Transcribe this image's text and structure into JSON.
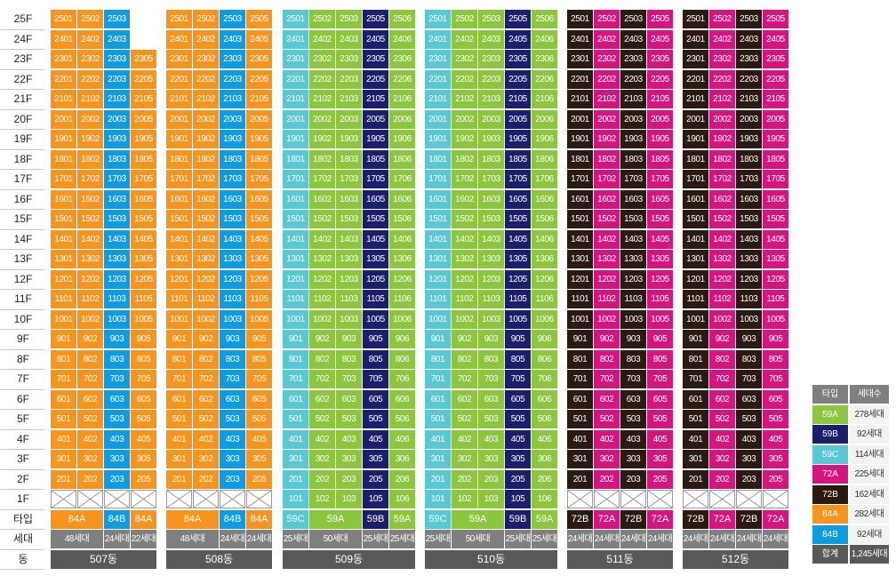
{
  "colors": {
    "59A": "#8cc63f",
    "59B": "#1b1f6b",
    "59C": "#5ac8d2",
    "72A": "#d4147f",
    "72B": "#2b1a12",
    "84A": "#f7941d",
    "84B": "#0f9be0"
  },
  "floors": [
    "25F",
    "24F",
    "23F",
    "22F",
    "21F",
    "20F",
    "19F",
    "18F",
    "17F",
    "16F",
    "15F",
    "14F",
    "13F",
    "12F",
    "11F",
    "10F",
    "9F",
    "8F",
    "7F",
    "6F",
    "5F",
    "4F",
    "3F",
    "2F",
    "1F"
  ],
  "row_labels": {
    "type": "타입",
    "households": "세대",
    "dong": "동"
  },
  "buildings": [
    {
      "name": "507동",
      "lines": [
        {
          "line": "01",
          "type": "84A",
          "top": 25,
          "first1F": false
        },
        {
          "line": "02",
          "type": "84A",
          "top": 25,
          "first1F": false
        },
        {
          "line": "03",
          "type": "84B",
          "top": 25,
          "first1F": false
        },
        {
          "line": "05",
          "type": "84A",
          "top": 23,
          "first1F": false
        }
      ],
      "type_groups": [
        {
          "label": "84A",
          "span": 2,
          "type": "84A"
        },
        {
          "label": "84B",
          "span": 1,
          "type": "84B"
        },
        {
          "label": "84A",
          "span": 1,
          "type": "84A"
        }
      ],
      "count_groups": [
        {
          "label": "48세대",
          "span": 2
        },
        {
          "label": "24세대",
          "span": 1
        },
        {
          "label": "22세대",
          "span": 1
        }
      ]
    },
    {
      "name": "508동",
      "lines": [
        {
          "line": "01",
          "type": "84A",
          "top": 25,
          "first1F": false
        },
        {
          "line": "02",
          "type": "84A",
          "top": 25,
          "first1F": false
        },
        {
          "line": "03",
          "type": "84B",
          "top": 25,
          "first1F": false
        },
        {
          "line": "05",
          "type": "84A",
          "top": 25,
          "first1F": false
        }
      ],
      "type_groups": [
        {
          "label": "84A",
          "span": 2,
          "type": "84A"
        },
        {
          "label": "84B",
          "span": 1,
          "type": "84B"
        },
        {
          "label": "84A",
          "span": 1,
          "type": "84A"
        }
      ],
      "count_groups": [
        {
          "label": "48세대",
          "span": 2
        },
        {
          "label": "24세대",
          "span": 1
        },
        {
          "label": "24세대",
          "span": 1
        }
      ]
    },
    {
      "name": "509동",
      "lines": [
        {
          "line": "01",
          "type": "59C",
          "top": 25,
          "first1F": true
        },
        {
          "line": "02",
          "type": "59A",
          "top": 25,
          "first1F": true
        },
        {
          "line": "03",
          "type": "59A",
          "top": 25,
          "first1F": true
        },
        {
          "line": "05",
          "type": "59B",
          "top": 25,
          "first1F": true
        },
        {
          "line": "06",
          "type": "59A",
          "top": 25,
          "first1F": true
        }
      ],
      "type_groups": [
        {
          "label": "59C",
          "span": 1,
          "type": "59C"
        },
        {
          "label": "59A",
          "span": 2,
          "type": "59A"
        },
        {
          "label": "59B",
          "span": 1,
          "type": "59B"
        },
        {
          "label": "59A",
          "span": 1,
          "type": "59A"
        }
      ],
      "count_groups": [
        {
          "label": "25세대",
          "span": 1
        },
        {
          "label": "50세대",
          "span": 2
        },
        {
          "label": "25세대",
          "span": 1
        },
        {
          "label": "25세대",
          "span": 1
        }
      ]
    },
    {
      "name": "510동",
      "lines": [
        {
          "line": "01",
          "type": "59C",
          "top": 25,
          "first1F": true
        },
        {
          "line": "02",
          "type": "59A",
          "top": 25,
          "first1F": true
        },
        {
          "line": "03",
          "type": "59A",
          "top": 25,
          "first1F": true
        },
        {
          "line": "05",
          "type": "59B",
          "top": 25,
          "first1F": true
        },
        {
          "line": "06",
          "type": "59A",
          "top": 25,
          "first1F": true
        }
      ],
      "type_groups": [
        {
          "label": "59C",
          "span": 1,
          "type": "59C"
        },
        {
          "label": "59A",
          "span": 2,
          "type": "59A"
        },
        {
          "label": "59B",
          "span": 1,
          "type": "59B"
        },
        {
          "label": "59A",
          "span": 1,
          "type": "59A"
        }
      ],
      "count_groups": [
        {
          "label": "25세대",
          "span": 1
        },
        {
          "label": "50세대",
          "span": 2
        },
        {
          "label": "25세대",
          "span": 1
        },
        {
          "label": "25세대",
          "span": 1
        }
      ]
    },
    {
      "name": "511동",
      "lines": [
        {
          "line": "01",
          "type": "72B",
          "top": 25,
          "first1F": false
        },
        {
          "line": "02",
          "type": "72A",
          "top": 25,
          "first1F": false
        },
        {
          "line": "03",
          "type": "72B",
          "top": 25,
          "first1F": false
        },
        {
          "line": "05",
          "type": "72A",
          "top": 25,
          "first1F": false
        }
      ],
      "type_groups": [
        {
          "label": "72B",
          "span": 1,
          "type": "72B"
        },
        {
          "label": "72A",
          "span": 1,
          "type": "72A"
        },
        {
          "label": "72B",
          "span": 1,
          "type": "72B"
        },
        {
          "label": "72A",
          "span": 1,
          "type": "72A"
        }
      ],
      "count_groups": [
        {
          "label": "24세대",
          "span": 1
        },
        {
          "label": "24세대",
          "span": 1
        },
        {
          "label": "24세대",
          "span": 1
        },
        {
          "label": "24세대",
          "span": 1
        }
      ]
    },
    {
      "name": "512동",
      "lines": [
        {
          "line": "01",
          "type": "72B",
          "top": 25,
          "first1F": false
        },
        {
          "line": "02",
          "type": "72A",
          "top": 25,
          "first1F": false
        },
        {
          "line": "03",
          "type": "72B",
          "top": 25,
          "first1F": false
        },
        {
          "line": "05",
          "type": "72A",
          "top": 25,
          "first1F": false
        }
      ],
      "type_groups": [
        {
          "label": "72B",
          "span": 1,
          "type": "72B"
        },
        {
          "label": "72A",
          "span": 1,
          "type": "72A"
        },
        {
          "label": "72B",
          "span": 1,
          "type": "72B"
        },
        {
          "label": "72A",
          "span": 1,
          "type": "72A"
        }
      ],
      "count_groups": [
        {
          "label": "24세대",
          "span": 1
        },
        {
          "label": "24세대",
          "span": 1
        },
        {
          "label": "24세대",
          "span": 1
        },
        {
          "label": "24세대",
          "span": 1
        }
      ]
    }
  ],
  "legend": {
    "header": {
      "type": "타입",
      "count": "세대수"
    },
    "rows": [
      {
        "type": "59A",
        "count": "278세대"
      },
      {
        "type": "59B",
        "count": "92세대"
      },
      {
        "type": "59C",
        "count": "114세대"
      },
      {
        "type": "72A",
        "count": "225세대"
      },
      {
        "type": "72B",
        "count": "162세대"
      },
      {
        "type": "84A",
        "count": "282세대"
      },
      {
        "type": "84B",
        "count": "92세대"
      }
    ],
    "total": {
      "type": "합계",
      "count": "1,245세대"
    }
  }
}
